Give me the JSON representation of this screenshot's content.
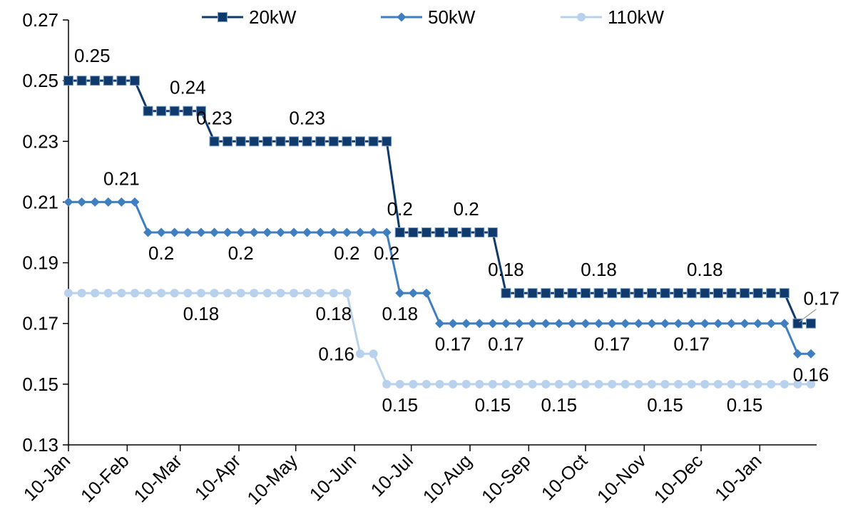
{
  "chart_data": {
    "type": "line",
    "title": "",
    "xlabel": "",
    "ylabel": "",
    "ylim": [
      0.13,
      0.27
    ],
    "yticks": [
      "0.13",
      "0.15",
      "0.17",
      "0.19",
      "0.21",
      "0.23",
      "0.25",
      "0.27"
    ],
    "xlim": [
      "2010-01-01",
      "2011-01-31"
    ],
    "xticks": [
      "10-Jan",
      "10-Feb",
      "10-Mar",
      "10-Apr",
      "10-May",
      "10-Jun",
      "10-Jul",
      "10-Aug",
      "10-Sep",
      "10-Oct",
      "10-Nov",
      "10-Dec",
      "10-Jan"
    ],
    "xtick_dates": [
      "2010-01-01",
      "2010-02-01",
      "2010-03-01",
      "2010-04-01",
      "2010-05-01",
      "2010-06-01",
      "2010-07-01",
      "2010-08-01",
      "2010-09-01",
      "2010-10-01",
      "2010-11-01",
      "2010-12-01",
      "2011-01-01"
    ],
    "grid": false,
    "legend": "top",
    "series": [
      {
        "name": "20kW",
        "color": "#0f3a6b",
        "marker": "square",
        "x": [
          "2010-01-01",
          "2010-01-08",
          "2010-01-15",
          "2010-01-22",
          "2010-01-29",
          "2010-02-05",
          "2010-02-12",
          "2010-02-19",
          "2010-02-26",
          "2010-03-05",
          "2010-03-12",
          "2010-03-19",
          "2010-03-26",
          "2010-04-02",
          "2010-04-09",
          "2010-04-16",
          "2010-04-23",
          "2010-04-30",
          "2010-05-07",
          "2010-05-14",
          "2010-05-21",
          "2010-05-28",
          "2010-06-04",
          "2010-06-11",
          "2010-06-18",
          "2010-06-25",
          "2010-07-02",
          "2010-07-09",
          "2010-07-16",
          "2010-07-23",
          "2010-07-30",
          "2010-08-06",
          "2010-08-13",
          "2010-08-20",
          "2010-08-27",
          "2010-09-03",
          "2010-09-10",
          "2010-09-17",
          "2010-09-24",
          "2010-10-01",
          "2010-10-08",
          "2010-10-15",
          "2010-10-22",
          "2010-10-29",
          "2010-11-05",
          "2010-11-12",
          "2010-11-19",
          "2010-11-26",
          "2010-12-03",
          "2010-12-10",
          "2010-12-17",
          "2010-12-24",
          "2010-12-31",
          "2011-01-07",
          "2011-01-14",
          "2011-01-21",
          "2011-01-28"
        ],
        "y": [
          0.25,
          0.25,
          0.25,
          0.25,
          0.25,
          0.25,
          0.24,
          0.24,
          0.24,
          0.24,
          0.24,
          0.23,
          0.23,
          0.23,
          0.23,
          0.23,
          0.23,
          0.23,
          0.23,
          0.23,
          0.23,
          0.23,
          0.23,
          0.23,
          0.23,
          0.2,
          0.2,
          0.2,
          0.2,
          0.2,
          0.2,
          0.2,
          0.2,
          0.18,
          0.18,
          0.18,
          0.18,
          0.18,
          0.18,
          0.18,
          0.18,
          0.18,
          0.18,
          0.18,
          0.18,
          0.18,
          0.18,
          0.18,
          0.18,
          0.18,
          0.18,
          0.18,
          0.18,
          0.18,
          0.18,
          0.17,
          0.17
        ]
      },
      {
        "name": "50kW",
        "color": "#3f7fbf",
        "marker": "diamond",
        "x": [
          "2010-01-01",
          "2010-01-08",
          "2010-01-15",
          "2010-01-22",
          "2010-01-29",
          "2010-02-05",
          "2010-02-12",
          "2010-02-19",
          "2010-02-26",
          "2010-03-05",
          "2010-03-12",
          "2010-03-19",
          "2010-03-26",
          "2010-04-02",
          "2010-04-09",
          "2010-04-16",
          "2010-04-23",
          "2010-04-30",
          "2010-05-07",
          "2010-05-14",
          "2010-05-21",
          "2010-05-28",
          "2010-06-04",
          "2010-06-11",
          "2010-06-18",
          "2010-06-25",
          "2010-07-02",
          "2010-07-09",
          "2010-07-16",
          "2010-07-23",
          "2010-07-30",
          "2010-08-06",
          "2010-08-13",
          "2010-08-20",
          "2010-08-27",
          "2010-09-03",
          "2010-09-10",
          "2010-09-17",
          "2010-09-24",
          "2010-10-01",
          "2010-10-08",
          "2010-10-15",
          "2010-10-22",
          "2010-10-29",
          "2010-11-05",
          "2010-11-12",
          "2010-11-19",
          "2010-11-26",
          "2010-12-03",
          "2010-12-10",
          "2010-12-17",
          "2010-12-24",
          "2010-12-31",
          "2011-01-07",
          "2011-01-14",
          "2011-01-21",
          "2011-01-28"
        ],
        "y": [
          0.21,
          0.21,
          0.21,
          0.21,
          0.21,
          0.21,
          0.2,
          0.2,
          0.2,
          0.2,
          0.2,
          0.2,
          0.2,
          0.2,
          0.2,
          0.2,
          0.2,
          0.2,
          0.2,
          0.2,
          0.2,
          0.2,
          0.2,
          0.2,
          0.2,
          0.18,
          0.18,
          0.18,
          0.17,
          0.17,
          0.17,
          0.17,
          0.17,
          0.17,
          0.17,
          0.17,
          0.17,
          0.17,
          0.17,
          0.17,
          0.17,
          0.17,
          0.17,
          0.17,
          0.17,
          0.17,
          0.17,
          0.17,
          0.17,
          0.17,
          0.17,
          0.17,
          0.17,
          0.17,
          0.17,
          0.16,
          0.16
        ]
      },
      {
        "name": "110kW",
        "color": "#b8d1ec",
        "marker": "circle",
        "x": [
          "2010-01-01",
          "2010-01-08",
          "2010-01-15",
          "2010-01-22",
          "2010-01-29",
          "2010-02-05",
          "2010-02-12",
          "2010-02-19",
          "2010-02-26",
          "2010-03-05",
          "2010-03-12",
          "2010-03-19",
          "2010-03-26",
          "2010-04-02",
          "2010-04-09",
          "2010-04-16",
          "2010-04-23",
          "2010-04-30",
          "2010-05-07",
          "2010-05-14",
          "2010-05-21",
          "2010-05-28",
          "2010-06-04",
          "2010-06-11",
          "2010-06-18",
          "2010-06-25",
          "2010-07-02",
          "2010-07-09",
          "2010-07-16",
          "2010-07-23",
          "2010-07-30",
          "2010-08-06",
          "2010-08-13",
          "2010-08-20",
          "2010-08-27",
          "2010-09-03",
          "2010-09-10",
          "2010-09-17",
          "2010-09-24",
          "2010-10-01",
          "2010-10-08",
          "2010-10-15",
          "2010-10-22",
          "2010-10-29",
          "2010-11-05",
          "2010-11-12",
          "2010-11-19",
          "2010-11-26",
          "2010-12-03",
          "2010-12-10",
          "2010-12-17",
          "2010-12-24",
          "2010-12-31",
          "2011-01-07",
          "2011-01-14",
          "2011-01-21",
          "2011-01-28"
        ],
        "y": [
          0.18,
          0.18,
          0.18,
          0.18,
          0.18,
          0.18,
          0.18,
          0.18,
          0.18,
          0.18,
          0.18,
          0.18,
          0.18,
          0.18,
          0.18,
          0.18,
          0.18,
          0.18,
          0.18,
          0.18,
          0.18,
          0.18,
          0.16,
          0.16,
          0.15,
          0.15,
          0.15,
          0.15,
          0.15,
          0.15,
          0.15,
          0.15,
          0.15,
          0.15,
          0.15,
          0.15,
          0.15,
          0.15,
          0.15,
          0.15,
          0.15,
          0.15,
          0.15,
          0.15,
          0.15,
          0.15,
          0.15,
          0.15,
          0.15,
          0.15,
          0.15,
          0.15,
          0.15,
          0.15,
          0.15,
          0.15,
          0.15
        ]
      }
    ],
    "annotations": [
      {
        "text": "0.25",
        "series": "20kW",
        "x": "2010-01-01",
        "y": 0.25,
        "position": "above-right"
      },
      {
        "text": "0.24",
        "series": "20kW",
        "x": "2010-03-05",
        "y": 0.24,
        "position": "above"
      },
      {
        "text": "0.23",
        "series": "20kW",
        "x": "2010-03-19",
        "y": 0.23,
        "position": "above"
      },
      {
        "text": "0.23",
        "series": "20kW",
        "x": "2010-05-07",
        "y": 0.23,
        "position": "above"
      },
      {
        "text": "0.2",
        "series": "20kW",
        "x": "2010-06-25",
        "y": 0.2,
        "position": "above"
      },
      {
        "text": "0.2",
        "series": "20kW",
        "x": "2010-07-30",
        "y": 0.2,
        "position": "above"
      },
      {
        "text": "0.18",
        "series": "20kW",
        "x": "2010-08-20",
        "y": 0.18,
        "position": "above"
      },
      {
        "text": "0.18",
        "series": "20kW",
        "x": "2010-10-08",
        "y": 0.18,
        "position": "above"
      },
      {
        "text": "0.18",
        "series": "20kW",
        "x": "2010-12-03",
        "y": 0.18,
        "position": "above"
      },
      {
        "text": "0.17",
        "series": "20kW",
        "x": "2011-01-21",
        "y": 0.17,
        "position": "above-right"
      },
      {
        "text": "0.21",
        "series": "50kW",
        "x": "2010-01-29",
        "y": 0.21,
        "position": "above"
      },
      {
        "text": "0.2",
        "series": "50kW",
        "x": "2010-02-19",
        "y": 0.2,
        "position": "below"
      },
      {
        "text": "0.2",
        "series": "50kW",
        "x": "2010-04-02",
        "y": 0.2,
        "position": "below"
      },
      {
        "text": "0.2",
        "series": "50kW",
        "x": "2010-05-28",
        "y": 0.2,
        "position": "below"
      },
      {
        "text": "0.2",
        "series": "50kW",
        "x": "2010-06-18",
        "y": 0.2,
        "position": "below"
      },
      {
        "text": "0.18",
        "series": "50kW",
        "x": "2010-06-25",
        "y": 0.18,
        "position": "below"
      },
      {
        "text": "0.17",
        "series": "50kW",
        "x": "2010-07-23",
        "y": 0.17,
        "position": "below"
      },
      {
        "text": "0.17",
        "series": "50kW",
        "x": "2010-08-20",
        "y": 0.17,
        "position": "below"
      },
      {
        "text": "0.17",
        "series": "50kW",
        "x": "2010-10-15",
        "y": 0.17,
        "position": "below"
      },
      {
        "text": "0.17",
        "series": "50kW",
        "x": "2010-11-26",
        "y": 0.17,
        "position": "below"
      },
      {
        "text": "0.16",
        "series": "50kW",
        "x": "2011-01-28",
        "y": 0.16,
        "position": "below"
      },
      {
        "text": "0.18",
        "series": "110kW",
        "x": "2010-03-12",
        "y": 0.18,
        "position": "below"
      },
      {
        "text": "0.18",
        "series": "110kW",
        "x": "2010-05-21",
        "y": 0.18,
        "position": "below"
      },
      {
        "text": "0.16",
        "series": "110kW",
        "x": "2010-06-04",
        "y": 0.16,
        "position": "left"
      },
      {
        "text": "0.15",
        "series": "110kW",
        "x": "2010-06-25",
        "y": 0.15,
        "position": "below"
      },
      {
        "text": "0.15",
        "series": "110kW",
        "x": "2010-08-13",
        "y": 0.15,
        "position": "below"
      },
      {
        "text": "0.15",
        "series": "110kW",
        "x": "2010-09-17",
        "y": 0.15,
        "position": "below"
      },
      {
        "text": "0.15",
        "series": "110kW",
        "x": "2010-11-12",
        "y": 0.15,
        "position": "below"
      },
      {
        "text": "0.15",
        "series": "110kW",
        "x": "2010-12-24",
        "y": 0.15,
        "position": "below"
      }
    ]
  }
}
